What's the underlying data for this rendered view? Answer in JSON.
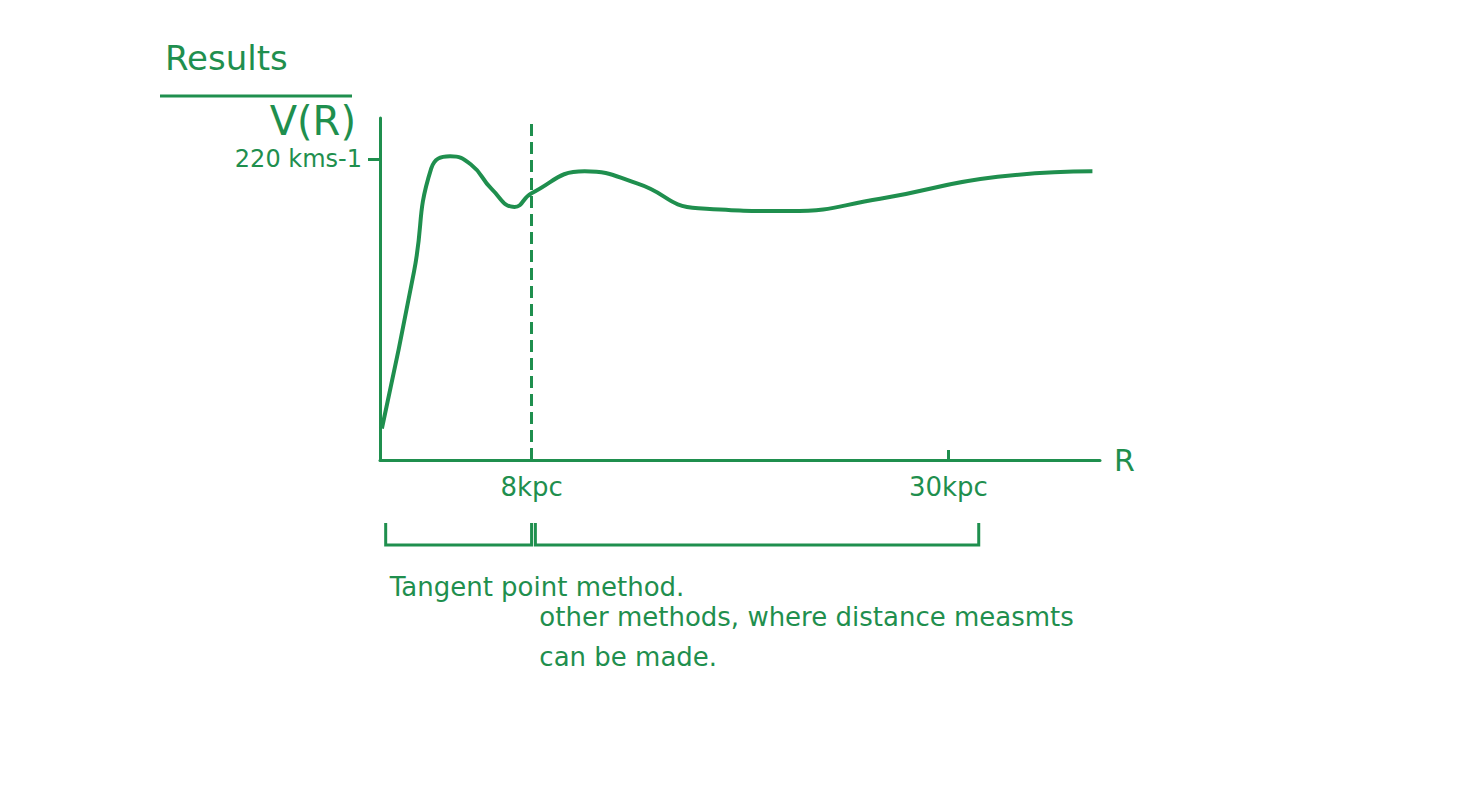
{
  "chart_data": {
    "type": "line",
    "title": "Results",
    "x_label": "R",
    "y_label": "V(R)",
    "x": [
      0.1,
      1.8,
      2.7,
      3.7,
      4.8,
      5.9,
      7.1,
      8.0,
      10.8,
      13.6,
      16.8,
      21.6,
      26.4,
      32.6,
      37.6
    ],
    "values": [
      23,
      138,
      213,
      222,
      216,
      198,
      185,
      195,
      211,
      202,
      184,
      182,
      191,
      207,
      211
    ],
    "color": "#1f8f4e",
    "xlim": [
      0,
      38
    ],
    "ylim": [
      0,
      250
    ],
    "xticks": [
      {
        "value": 8,
        "label": "8kpc"
      },
      {
        "value": 30,
        "label": "30kpc"
      }
    ],
    "yticks": [
      {
        "value": 220,
        "label": "220 kms-1"
      }
    ],
    "vline": 8,
    "annotations": [
      {
        "text": "Tangent point method.",
        "x_range": [
          0.3,
          8
        ]
      },
      {
        "text": "other methods, where distance measmts can be made.",
        "x_range": [
          8.2,
          31.6
        ]
      }
    ],
    "grid": false,
    "marker": "none",
    "line_style": "solid"
  }
}
